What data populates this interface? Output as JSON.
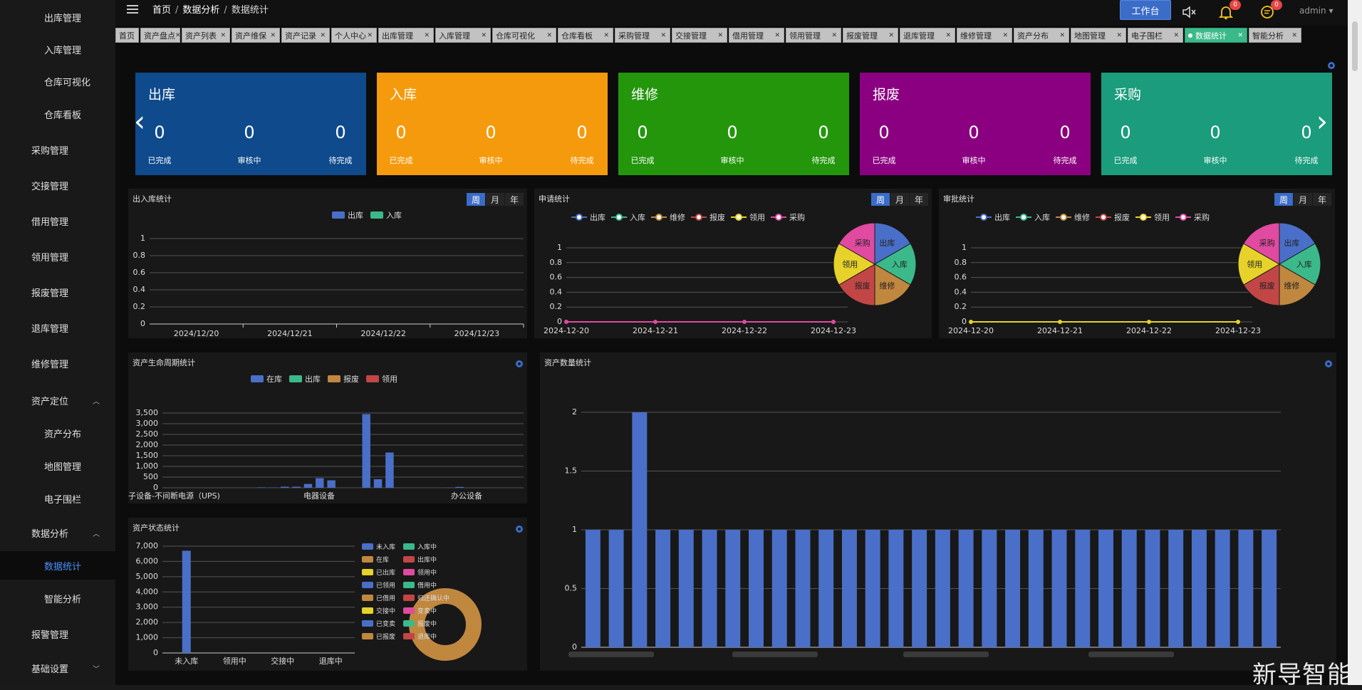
{
  "sidebar": {
    "items": [
      {
        "label": "出库管理",
        "indent": true
      },
      {
        "label": "入库管理",
        "indent": true
      },
      {
        "label": "仓库可视化",
        "indent": true
      },
      {
        "label": "仓库看板",
        "indent": true
      },
      {
        "label": "采购管理"
      },
      {
        "label": "交接管理"
      },
      {
        "label": "借用管理"
      },
      {
        "label": "领用管理"
      },
      {
        "label": "报废管理"
      },
      {
        "label": "退库管理"
      },
      {
        "label": "维修管理"
      },
      {
        "label": "资产定位",
        "expanded": true
      },
      {
        "label": "资产分布",
        "indent": true
      },
      {
        "label": "地图管理",
        "indent": true
      },
      {
        "label": "电子围栏",
        "indent": true
      },
      {
        "label": "数据分析",
        "expanded": true
      },
      {
        "label": "数据统计",
        "indent": true,
        "active": true
      },
      {
        "label": "智能分析",
        "indent": true
      },
      {
        "label": "报警管理"
      },
      {
        "label": "基础设置",
        "collapsed": true
      }
    ]
  },
  "header": {
    "breadcrumb": [
      "首页",
      "数据分析",
      "数据统计"
    ],
    "workbench": "工作台",
    "notify_count": "0",
    "message_count": "0",
    "user": "admin"
  },
  "tabs": [
    "首页",
    "资产盘点",
    "资产列表",
    "资产维保",
    "资产记录",
    "个人中心",
    "出库管理",
    "入库管理",
    "仓库可视化",
    "仓库看板",
    "采购管理",
    "交接管理",
    "借用管理",
    "领用管理",
    "报废管理",
    "退库管理",
    "维修管理",
    "资产分布",
    "地图管理",
    "电子围栏",
    "数据统计",
    "智能分析"
  ],
  "active_tab": "数据统计",
  "cards": [
    {
      "title": "出库",
      "color": "#0e4a8c",
      "values": [
        "0",
        "0",
        "0"
      ]
    },
    {
      "title": "入库",
      "color": "#f59a0c",
      "values": [
        "0",
        "0",
        "0"
      ]
    },
    {
      "title": "维修",
      "color": "#23960c",
      "values": [
        "0",
        "0",
        "0"
      ]
    },
    {
      "title": "报废",
      "color": "#8b0080",
      "values": [
        "0",
        "0",
        "0"
      ]
    },
    {
      "title": "采购",
      "color": "#1b9c7c",
      "values": [
        "0",
        "0",
        "0"
      ]
    }
  ],
  "card_sub_labels": [
    "已完成",
    "审核中",
    "待完成"
  ],
  "period_tabs": [
    "周",
    "月",
    "年"
  ],
  "panels": {
    "inout": {
      "title": "出入库统计",
      "legend": [
        {
          "name": "出库",
          "color": "#4a6fc8"
        },
        {
          "name": "入库",
          "color": "#3bb98a"
        }
      ]
    },
    "apply": {
      "title": "申请统计"
    },
    "approve": {
      "title": "审批统计"
    },
    "lifecycle": {
      "title": "资产生命周期统计",
      "legend": [
        {
          "name": "在库",
          "color": "#4a6fc8"
        },
        {
          "name": "出库",
          "color": "#3bb98a"
        },
        {
          "name": "报废",
          "color": "#c0873f"
        },
        {
          "name": "领用",
          "color": "#c24646"
        }
      ]
    },
    "status": {
      "title": "资产状态统计"
    },
    "quantity": {
      "title": "资产数量统计"
    }
  },
  "pie_legend": [
    {
      "name": "出库",
      "color": "#4a6fc8"
    },
    {
      "name": "入库",
      "color": "#3bb98a"
    },
    {
      "name": "维修",
      "color": "#c0873f"
    },
    {
      "name": "报废",
      "color": "#c24646"
    },
    {
      "name": "领用",
      "color": "#e6d22a"
    },
    {
      "name": "采购",
      "color": "#e04aa0"
    }
  ],
  "status_legend": [
    {
      "name": "未入库",
      "color": "#4a6fc8"
    },
    {
      "name": "入库中",
      "color": "#3bb98a"
    },
    {
      "name": "在库",
      "color": "#c0873f"
    },
    {
      "name": "出库中",
      "color": "#c24646"
    },
    {
      "name": "已出库",
      "color": "#e6d22a"
    },
    {
      "name": "领用中",
      "color": "#e04aa0"
    },
    {
      "name": "已领用",
      "color": "#4a6fc8"
    },
    {
      "name": "借用中",
      "color": "#3bb98a"
    },
    {
      "name": "已借用",
      "color": "#c0873f"
    },
    {
      "name": "归还确认中",
      "color": "#c24646"
    },
    {
      "name": "交接中",
      "color": "#e6d22a"
    },
    {
      "name": "变卖中",
      "color": "#e04aa0"
    },
    {
      "name": "已变卖",
      "color": "#4a6fc8"
    },
    {
      "name": "报废中",
      "color": "#3bb98a"
    },
    {
      "name": "已报废",
      "color": "#c0873f"
    },
    {
      "name": "退库中",
      "color": "#c24646"
    }
  ],
  "chart_data": [
    {
      "id": "inout",
      "type": "bar",
      "categories": [
        "2024/12/20",
        "2024/12/21",
        "2024/12/22",
        "2024/12/23"
      ],
      "series": [
        {
          "name": "出库",
          "values": [
            0,
            0,
            0,
            0
          ]
        },
        {
          "name": "入库",
          "values": [
            0,
            0,
            0,
            0
          ]
        }
      ],
      "yticks": [
        "0",
        "0.2",
        "0.4",
        "0.6",
        "0.8",
        "1"
      ],
      "ylim": [
        0,
        1
      ]
    },
    {
      "id": "apply",
      "type": "line",
      "categories": [
        "2024-12-20",
        "2024-12-21",
        "2024-12-22",
        "2024-12-23"
      ],
      "series": [
        {
          "name": "出库",
          "values": [
            0,
            0,
            0,
            0
          ]
        },
        {
          "name": "入库",
          "values": [
            0,
            0,
            0,
            0
          ]
        },
        {
          "name": "维修",
          "values": [
            0,
            0,
            0,
            0
          ]
        },
        {
          "name": "报废",
          "values": [
            0,
            0,
            0,
            0
          ]
        },
        {
          "name": "领用",
          "values": [
            0,
            0,
            0,
            0
          ]
        },
        {
          "name": "采购",
          "values": [
            0,
            0,
            0,
            0
          ]
        }
      ],
      "yticks": [
        "0",
        "0.2",
        "0.4",
        "0.6",
        "0.8",
        "1"
      ],
      "ylim": [
        0,
        1
      ],
      "line_color": "#e04aa0"
    },
    {
      "id": "approve",
      "type": "line",
      "categories": [
        "2024-12-20",
        "2024-12-21",
        "2024-12-22",
        "2024-12-23"
      ],
      "series": [
        {
          "name": "出库",
          "values": [
            0,
            0,
            0,
            0
          ]
        },
        {
          "name": "入库",
          "values": [
            0,
            0,
            0,
            0
          ]
        },
        {
          "name": "维修",
          "values": [
            0,
            0,
            0,
            0
          ]
        },
        {
          "name": "报废",
          "values": [
            0,
            0,
            0,
            0
          ]
        },
        {
          "name": "领用",
          "values": [
            0,
            0,
            0,
            0
          ]
        },
        {
          "name": "采购",
          "values": [
            0,
            0,
            0,
            0
          ]
        }
      ],
      "yticks": [
        "0",
        "0.2",
        "0.4",
        "0.6",
        "0.8",
        "1"
      ],
      "ylim": [
        0,
        1
      ],
      "line_color": "#e6d22a"
    },
    {
      "id": "lifecycle",
      "type": "bar",
      "xlabels": [
        "子设备-不间断电源（UPS)",
        "电器设备",
        "办公设备"
      ],
      "values": [
        0,
        0,
        0,
        0,
        0,
        0,
        0,
        0,
        20,
        10,
        50,
        50,
        180,
        450,
        350,
        0,
        0,
        3450,
        400,
        1650,
        0,
        0,
        0,
        0,
        5,
        40,
        0,
        0,
        0,
        0,
        0
      ],
      "yticks": [
        "0",
        "500",
        "1,000",
        "1,500",
        "2,000",
        "2,500",
        "3,000",
        "3,500"
      ],
      "ylim": [
        0,
        3500
      ]
    },
    {
      "id": "status",
      "type": "bar",
      "categories": [
        "未入库",
        "领用中",
        "交接中",
        "退库中"
      ],
      "values": [
        6700,
        0,
        0,
        0
      ],
      "yticks": [
        "0",
        "1,000",
        "2,000",
        "3,000",
        "4,000",
        "5,000",
        "6,000",
        "7,000"
      ],
      "ylim": [
        0,
        7000
      ]
    },
    {
      "id": "quantity",
      "type": "bar",
      "values": [
        1,
        1,
        2,
        1,
        1,
        1,
        1,
        1,
        1,
        1,
        1,
        1,
        1,
        1,
        1,
        1,
        1,
        1,
        1,
        1,
        1,
        1,
        1,
        1,
        1,
        1,
        1,
        1,
        1,
        1
      ],
      "yticks": [
        "0",
        "0.5",
        "1",
        "1.5",
        "2"
      ],
      "ylim": [
        0,
        2
      ]
    },
    {
      "id": "pie",
      "type": "pie",
      "labels": [
        "出库",
        "入库",
        "维修",
        "报废",
        "领用",
        "采购"
      ],
      "values": [
        1,
        1,
        1,
        1,
        1,
        1
      ]
    }
  ],
  "watermark": "新导智能"
}
